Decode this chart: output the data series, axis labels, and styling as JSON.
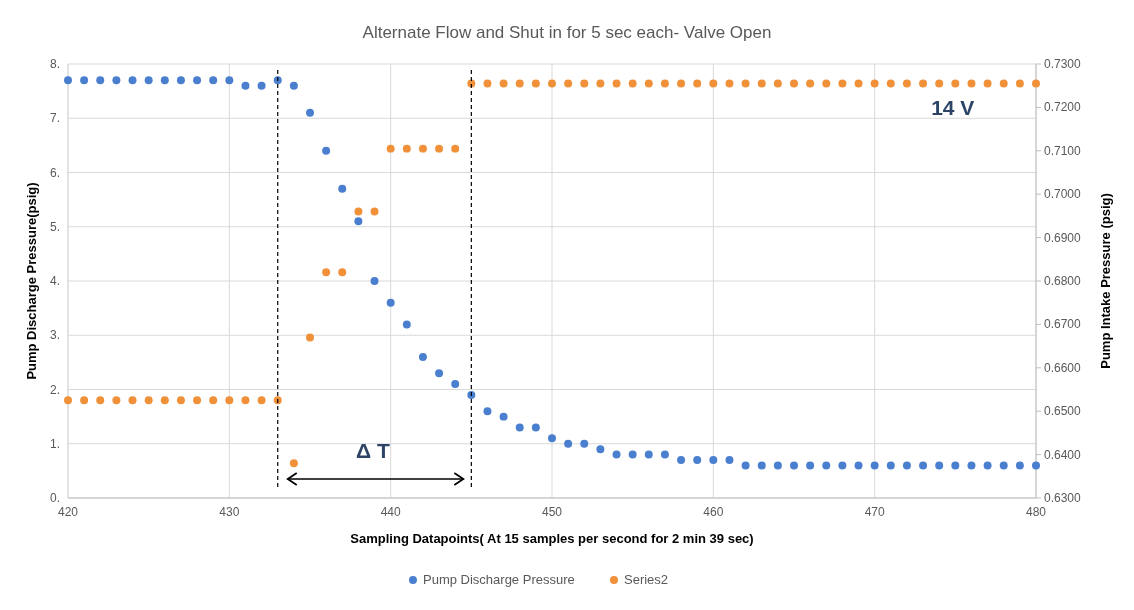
{
  "chart_data": {
    "type": "scatter",
    "title": "Alternate Flow and Shut in for 5 sec each- Valve Open",
    "xlabel": "Sampling Datapoints(  At 15 samples per second for 2 min 39 sec)",
    "ylabel": "Pump Discharge Pressure(psig)",
    "y2label": "Pump Intake Pressure (psig)",
    "x": [
      420,
      421,
      422,
      423,
      424,
      425,
      426,
      427,
      428,
      429,
      430,
      431,
      432,
      433,
      434,
      435,
      436,
      437,
      438,
      439,
      440,
      441,
      442,
      443,
      444,
      445,
      446,
      447,
      448,
      449,
      450,
      451,
      452,
      453,
      454,
      455,
      456,
      457,
      458,
      459,
      460,
      461,
      462,
      463,
      464,
      465,
      466,
      467,
      468,
      469,
      470,
      471,
      472,
      473,
      474,
      475,
      476,
      477,
      478,
      479,
      480
    ],
    "series": [
      {
        "name": "Pump Discharge Pressure",
        "color": "#4a7fd0",
        "values": [
          7.7,
          7.7,
          7.7,
          7.7,
          7.7,
          7.7,
          7.7,
          7.7,
          7.7,
          7.7,
          7.7,
          7.6,
          7.6,
          7.7,
          7.6,
          7.1,
          6.4,
          5.7,
          5.1,
          4.0,
          3.6,
          3.2,
          2.6,
          2.3,
          2.1,
          1.9,
          1.6,
          1.5,
          1.3,
          1.3,
          1.1,
          1.0,
          1.0,
          0.9,
          0.8,
          0.8,
          0.8,
          0.8,
          0.7,
          0.7,
          0.7,
          0.7,
          0.6,
          0.6,
          0.6,
          0.6,
          0.6,
          0.6,
          0.6,
          0.6,
          0.6,
          0.6,
          0.6,
          0.6,
          0.6,
          0.6,
          0.6,
          0.6,
          0.6,
          0.6,
          0.6
        ]
      },
      {
        "name": "Series2",
        "color": "#f0913a",
        "axis": "y2",
        "values": [
          0.6525,
          0.6525,
          0.6525,
          0.6525,
          0.6525,
          0.6525,
          0.6525,
          0.6525,
          0.6525,
          0.6525,
          0.6525,
          0.6525,
          0.6525,
          0.6525,
          0.638,
          0.667,
          0.682,
          0.682,
          0.696,
          0.696,
          0.7105,
          0.7105,
          0.7105,
          0.7105,
          0.7105,
          0.7255,
          0.7255,
          0.7255,
          0.7255,
          0.7255,
          0.7255,
          0.7255,
          0.7255,
          0.7255,
          0.7255,
          0.7255,
          0.7255,
          0.7255,
          0.7255,
          0.7255,
          0.7255,
          0.7255,
          0.7255,
          0.7255,
          0.7255,
          0.7255,
          0.7255,
          0.7255,
          0.7255,
          0.7255,
          0.7255,
          0.7255,
          0.7255,
          0.7255,
          0.7255,
          0.7255,
          0.7255,
          0.7255,
          0.7255,
          0.7255,
          0.7255
        ]
      }
    ],
    "xlim": [
      420,
      480
    ],
    "xticks": [
      420,
      430,
      440,
      450,
      460,
      470,
      480
    ],
    "ylim": [
      0,
      8
    ],
    "yticks": [
      {
        "value": 0,
        "label": "0."
      },
      {
        "value": 1,
        "label": "1."
      },
      {
        "value": 2,
        "label": "2."
      },
      {
        "value": 3,
        "label": "3."
      },
      {
        "value": 4,
        "label": "4."
      },
      {
        "value": 5,
        "label": "5."
      },
      {
        "value": 6,
        "label": "6."
      },
      {
        "value": 7,
        "label": "7."
      },
      {
        "value": 8,
        "label": "8."
      }
    ],
    "y2lim": [
      0.63,
      0.73
    ],
    "y2ticks": [
      {
        "value": 0.63,
        "label": "0.6300"
      },
      {
        "value": 0.64,
        "label": "0.6400"
      },
      {
        "value": 0.65,
        "label": "0.6500"
      },
      {
        "value": 0.66,
        "label": "0.6600"
      },
      {
        "value": 0.67,
        "label": "0.6700"
      },
      {
        "value": 0.68,
        "label": "0.6800"
      },
      {
        "value": 0.69,
        "label": "0.6900"
      },
      {
        "value": 0.7,
        "label": "0.7000"
      },
      {
        "value": 0.71,
        "label": "0.7100"
      },
      {
        "value": 0.72,
        "label": "0.7200"
      },
      {
        "value": 0.73,
        "label": "0.7300"
      }
    ],
    "ref_lines": [
      {
        "axis": "x",
        "value": 433,
        "color": "#000000",
        "line_style": "dashed"
      },
      {
        "axis": "x",
        "value": 445,
        "color": "#000000",
        "line_style": "dashed"
      }
    ],
    "annotations": [
      "Δ T",
      "14 V"
    ],
    "grid": true,
    "legend": "bottom",
    "marker": "circle"
  }
}
